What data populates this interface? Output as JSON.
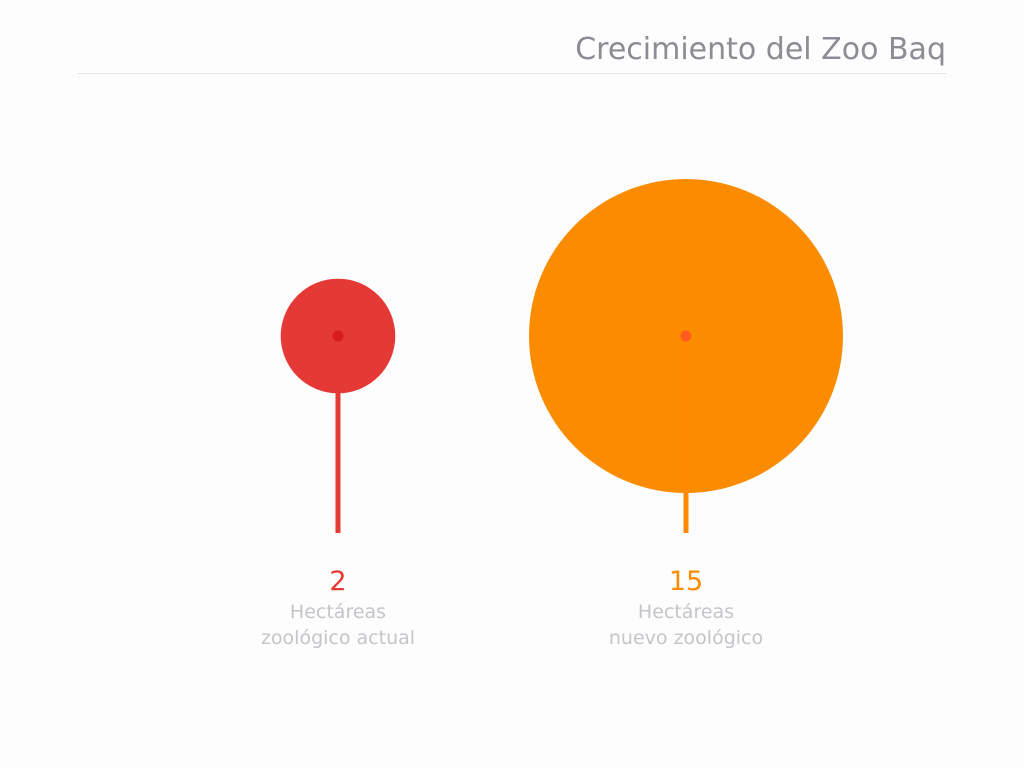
{
  "title": "Crecimiento del Zoo Baq",
  "chart_data": {
    "type": "bubble",
    "title": "Crecimiento del Zoo Baq",
    "unit": "Hectáreas",
    "items": [
      {
        "value": 2,
        "label": "2",
        "caption_lines": [
          "Hectáreas",
          "zoológico actual"
        ],
        "color": "#e53935",
        "stem_color": "#e53935",
        "dot_color": "#d81b1b"
      },
      {
        "value": 15,
        "label": "15",
        "caption_lines": [
          "Hectáreas",
          "nuevo zoológico"
        ],
        "color": "#fb8c00",
        "stem_color": "#ff8a00",
        "dot_color": "#ff5a1f"
      }
    ]
  }
}
